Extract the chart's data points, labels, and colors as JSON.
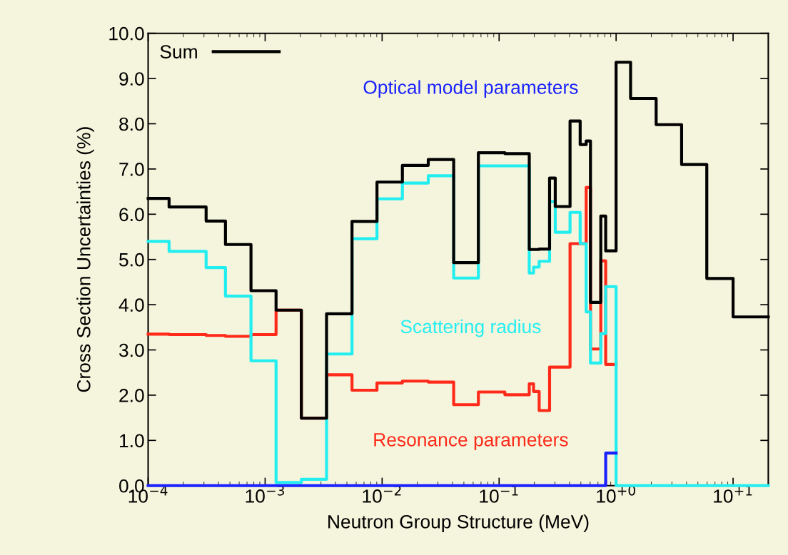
{
  "chart_data": {
    "type": "step",
    "xlabel": "Neutron Group Structure (MeV)",
    "ylabel": "Cross Section Uncertainties (%)",
    "x": [
      0.0001,
      0.000151,
      0.000313,
      0.000458,
      0.000757,
      0.00124,
      0.00204,
      0.00335,
      0.00553,
      0.00904,
      0.0149,
      0.0248,
      0.0409,
      0.0665,
      0.112,
      0.181,
      0.197,
      0.22,
      0.27,
      0.302,
      0.404,
      0.493,
      0.555,
      0.604,
      0.74,
      0.815,
      1.0,
      1.33,
      2.2,
      3.63,
      5.96,
      10,
      20
    ],
    "series": [
      {
        "name": "Resonance parameters",
        "color": "#ff2a1a",
        "values": [
          3.35,
          3.34,
          3.32,
          3.3,
          3.34,
          3.88,
          1.49,
          2.45,
          2.11,
          2.27,
          2.31,
          2.29,
          1.79,
          2.07,
          2.01,
          2.25,
          2.08,
          1.66,
          2.62,
          2.62,
          5.35,
          5.35,
          6.59,
          3.02,
          4.97,
          2.68,
          2.68,
          null,
          null,
          null,
          null,
          null,
          null
        ]
      },
      {
        "name": "Scattering radius",
        "color": "#22eef0",
        "values": [
          5.4,
          5.18,
          4.82,
          4.19,
          2.76,
          0.07,
          0.14,
          2.91,
          5.46,
          6.34,
          6.69,
          6.85,
          4.59,
          7.07,
          7.07,
          4.7,
          4.83,
          4.96,
          6.28,
          5.6,
          6.04,
          5.35,
          3.84,
          2.71,
          3.36,
          4.4,
          0,
          0,
          0,
          0,
          0,
          0,
          0
        ]
      },
      {
        "name": "Optical model parameters",
        "color": "#1a22ff",
        "values": [
          0,
          0,
          0,
          0,
          0,
          0,
          0,
          0,
          0,
          0,
          0,
          0,
          0,
          0,
          0,
          0,
          0,
          0,
          0,
          0,
          0,
          0,
          0,
          0,
          0,
          0.72,
          0.72,
          null,
          null,
          null,
          null,
          null,
          null
        ]
      },
      {
        "name": "Sum",
        "color": "#000000",
        "values": [
          6.35,
          6.16,
          5.85,
          5.33,
          4.31,
          3.88,
          1.49,
          3.8,
          5.84,
          6.71,
          7.08,
          7.21,
          4.93,
          7.36,
          7.34,
          5.22,
          5.22,
          5.23,
          6.8,
          6.17,
          8.06,
          7.54,
          7.62,
          4.05,
          5.96,
          5.19,
          9.36,
          8.56,
          7.98,
          7.1,
          4.58,
          3.73,
          3.73
        ]
      }
    ],
    "log": "x",
    "xlim": [
      0.0001,
      20
    ],
    "ylim": [
      0,
      10
    ],
    "xticks": [
      {
        "value": 0.0001,
        "label": "10$^{−4}$"
      },
      {
        "value": 0.001,
        "label": "10$^{−3}$"
      },
      {
        "value": 0.01,
        "label": "10$^{−2}$"
      },
      {
        "value": 0.1,
        "label": "10$^{−1}$"
      },
      {
        "value": 1,
        "label": "10$^{+0}$"
      },
      {
        "value": 10,
        "label": "10$^{+1}$"
      }
    ],
    "yticks": [
      {
        "value": 0,
        "label": "0.0"
      },
      {
        "value": 1,
        "label": "1.0"
      },
      {
        "value": 2,
        "label": "2.0"
      },
      {
        "value": 3,
        "label": "3.0"
      },
      {
        "value": 4,
        "label": "4.0"
      },
      {
        "value": 5,
        "label": "5.0"
      },
      {
        "value": 6,
        "label": "6.0"
      },
      {
        "value": 7,
        "label": "7.0"
      },
      {
        "value": 8,
        "label": "8.0"
      },
      {
        "value": 9,
        "label": "9.0"
      },
      {
        "value": 10,
        "label": "10.0"
      }
    ],
    "grid": false,
    "legend": "top left"
  }
}
